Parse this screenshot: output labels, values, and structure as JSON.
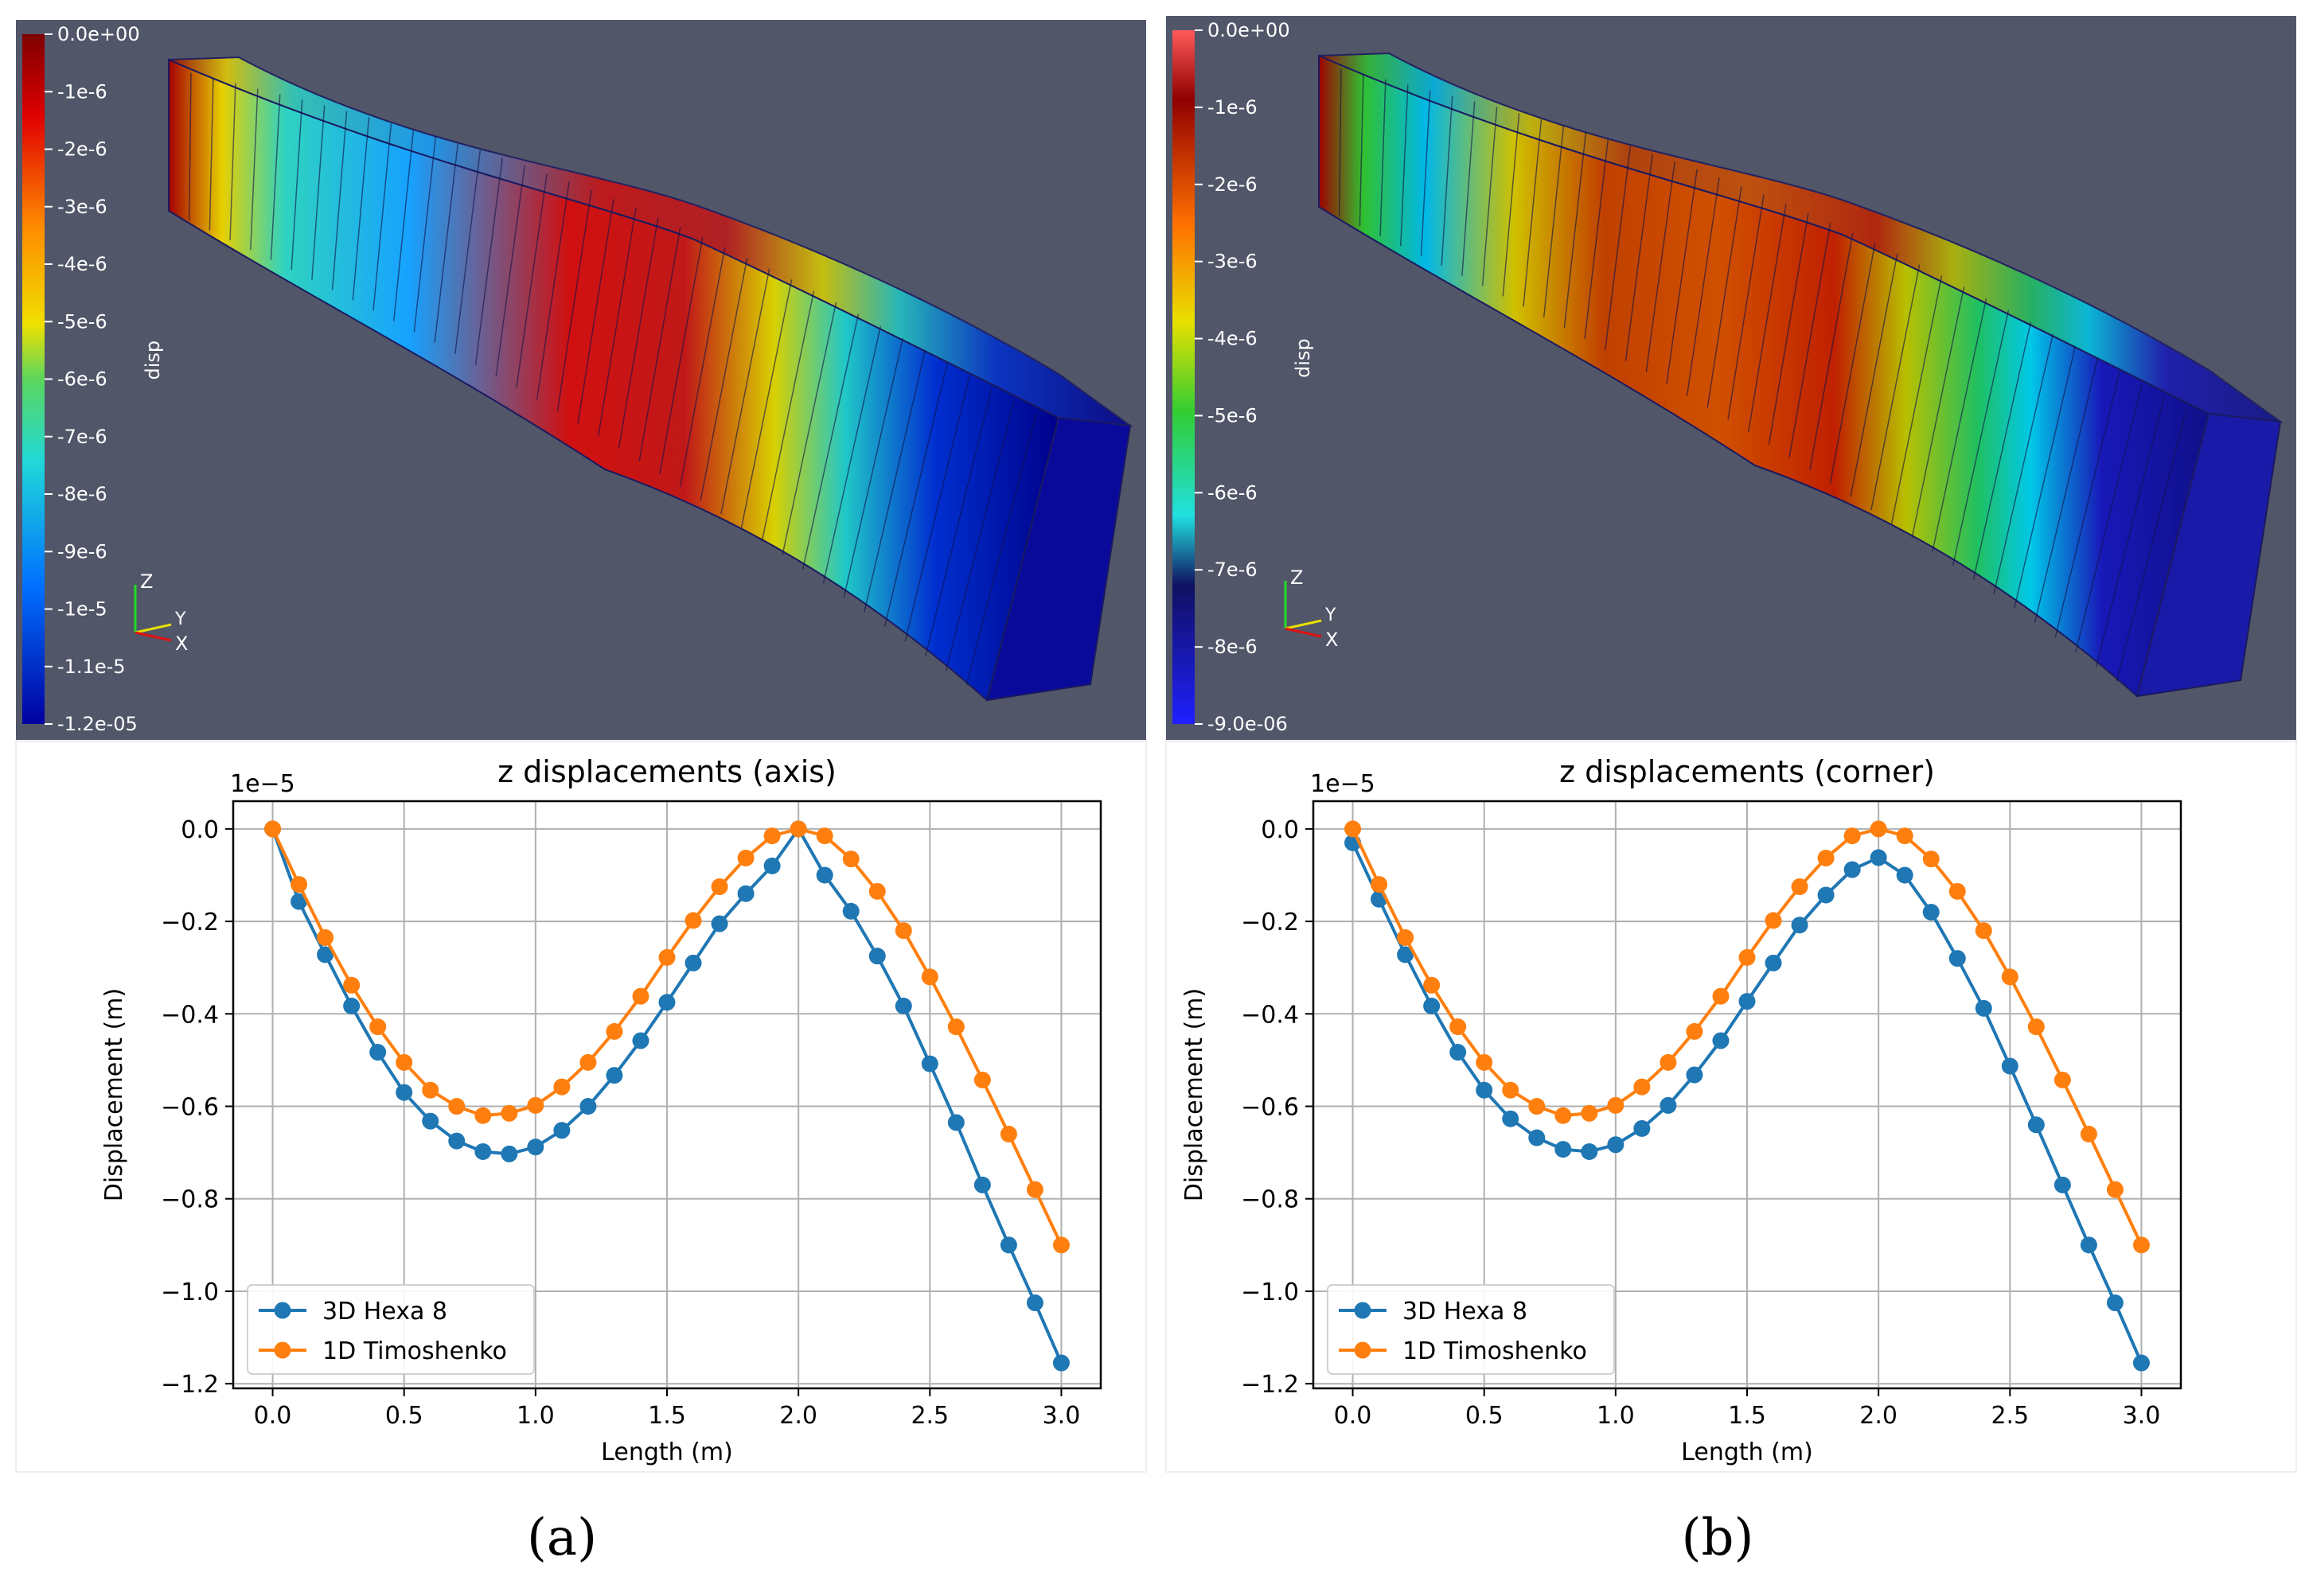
{
  "panels": [
    {
      "caption": "(a)",
      "render": {
        "bar_title": "disp",
        "colorbar_ticks": [
          "0.0e+00",
          "-1e-6",
          "-2e-6",
          "-3e-6",
          "-4e-6",
          "-5e-6",
          "-6e-6",
          "-7e-6",
          "-8e-6",
          "-9e-6",
          "-1e-5",
          "-1.1e-5",
          "-1.2e-05"
        ],
        "axis_labels": {
          "z": "Z",
          "y": "Y",
          "x": "X"
        },
        "colors": {
          "background": "#525669",
          "bar_top": "#7e0000",
          "bar_mid": "#5cd65c",
          "bar_bottom": "#0000a0"
        }
      },
      "chart_data": {
        "type": "line",
        "title": "z displacements (axis)",
        "xlabel": "Length (m)",
        "ylabel": "Displacement (m)",
        "offset_label": "1e−5",
        "xlim": [
          -0.15,
          3.15
        ],
        "ylim": [
          -1.21,
          0.06
        ],
        "xticks": [
          0.0,
          0.5,
          1.0,
          1.5,
          2.0,
          2.5,
          3.0
        ],
        "xtick_labels": [
          "0.0",
          "0.5",
          "1.0",
          "1.5",
          "2.0",
          "2.5",
          "3.0"
        ],
        "yticks": [
          0.0,
          -0.2,
          -0.4,
          -0.6,
          -0.8,
          -1.0,
          -1.2
        ],
        "ytick_labels": [
          "0.0",
          "−0.2",
          "−0.4",
          "−0.6",
          "−0.8",
          "−1.0",
          "−1.2"
        ],
        "grid": true,
        "legend_position": "lower-left",
        "x": [
          0.0,
          0.1,
          0.2,
          0.3,
          0.4,
          0.5,
          0.6,
          0.7,
          0.8,
          0.9,
          1.0,
          1.1,
          1.2,
          1.3,
          1.4,
          1.5,
          1.6,
          1.7,
          1.8,
          1.9,
          2.0,
          2.1,
          2.2,
          2.3,
          2.4,
          2.5,
          2.6,
          2.7,
          2.8,
          2.9,
          3.0
        ],
        "series": [
          {
            "name": "3D Hexa 8",
            "color": "#1f77b4",
            "values": [
              0.0,
              -0.157,
              -0.272,
              -0.383,
              -0.483,
              -0.57,
              -0.632,
              -0.675,
              -0.698,
              -0.703,
              -0.688,
              -0.652,
              -0.6,
              -0.533,
              -0.458,
              -0.375,
              -0.29,
              -0.205,
              -0.14,
              -0.08,
              0.0,
              -0.1,
              -0.178,
              -0.275,
              -0.383,
              -0.508,
              -0.635,
              -0.77,
              -0.9,
              -1.025,
              -1.155
            ]
          },
          {
            "name": "1D Timoshenko",
            "color": "#ff7f0e",
            "values": [
              0.0,
              -0.12,
              -0.235,
              -0.338,
              -0.428,
              -0.505,
              -0.565,
              -0.6,
              -0.62,
              -0.615,
              -0.598,
              -0.558,
              -0.505,
              -0.438,
              -0.362,
              -0.278,
              -0.198,
              -0.125,
              -0.063,
              -0.015,
              0.0,
              -0.015,
              -0.065,
              -0.135,
              -0.22,
              -0.32,
              -0.428,
              -0.543,
              -0.66,
              -0.78,
              -0.9
            ]
          }
        ]
      }
    },
    {
      "caption": "(b)",
      "render": {
        "bar_title": "disp",
        "colorbar_ticks": [
          "0.0e+00",
          "-1e-6",
          "-2e-6",
          "-3e-6",
          "-4e-6",
          "-5e-6",
          "-6e-6",
          "-7e-6",
          "-8e-6",
          "-9.0e-06"
        ],
        "axis_labels": {
          "z": "Z",
          "y": "Y",
          "x": "X"
        },
        "colors": {
          "background": "#525669",
          "bar_top": "#ff5a5a",
          "bar_mid": "#32cd32",
          "bar_bottom": "#2020ff"
        }
      },
      "chart_data": {
        "type": "line",
        "title": "z displacements (corner)",
        "xlabel": "Length (m)",
        "ylabel": "Displacement (m)",
        "offset_label": "1e−5",
        "xlim": [
          -0.15,
          3.15
        ],
        "ylim": [
          -1.21,
          0.06
        ],
        "xticks": [
          0.0,
          0.5,
          1.0,
          1.5,
          2.0,
          2.5,
          3.0
        ],
        "xtick_labels": [
          "0.0",
          "0.5",
          "1.0",
          "1.5",
          "2.0",
          "2.5",
          "3.0"
        ],
        "yticks": [
          0.0,
          -0.2,
          -0.4,
          -0.6,
          -0.8,
          -1.0,
          -1.2
        ],
        "ytick_labels": [
          "0.0",
          "−0.2",
          "−0.4",
          "−0.6",
          "−0.8",
          "−1.0",
          "−1.2"
        ],
        "grid": true,
        "legend_position": "lower-left",
        "x": [
          0.0,
          0.1,
          0.2,
          0.3,
          0.4,
          0.5,
          0.6,
          0.7,
          0.8,
          0.9,
          1.0,
          1.1,
          1.2,
          1.3,
          1.4,
          1.5,
          1.6,
          1.7,
          1.8,
          1.9,
          2.0,
          2.1,
          2.2,
          2.3,
          2.4,
          2.5,
          2.6,
          2.7,
          2.8,
          2.9,
          3.0
        ],
        "series": [
          {
            "name": "3D Hexa 8",
            "color": "#1f77b4",
            "values": [
              -0.03,
              -0.152,
              -0.272,
              -0.383,
              -0.483,
              -0.565,
              -0.627,
              -0.668,
              -0.693,
              -0.698,
              -0.683,
              -0.648,
              -0.598,
              -0.532,
              -0.458,
              -0.373,
              -0.29,
              -0.208,
              -0.143,
              -0.088,
              -0.062,
              -0.1,
              -0.18,
              -0.28,
              -0.388,
              -0.513,
              -0.64,
              -0.77,
              -0.9,
              -1.025,
              -1.155
            ]
          },
          {
            "name": "1D Timoshenko",
            "color": "#ff7f0e",
            "values": [
              0.0,
              -0.12,
              -0.235,
              -0.338,
              -0.428,
              -0.505,
              -0.565,
              -0.6,
              -0.62,
              -0.615,
              -0.598,
              -0.558,
              -0.505,
              -0.438,
              -0.362,
              -0.278,
              -0.198,
              -0.125,
              -0.063,
              -0.015,
              0.0,
              -0.015,
              -0.065,
              -0.135,
              -0.22,
              -0.32,
              -0.428,
              -0.543,
              -0.66,
              -0.78,
              -0.9
            ]
          }
        ]
      }
    }
  ]
}
